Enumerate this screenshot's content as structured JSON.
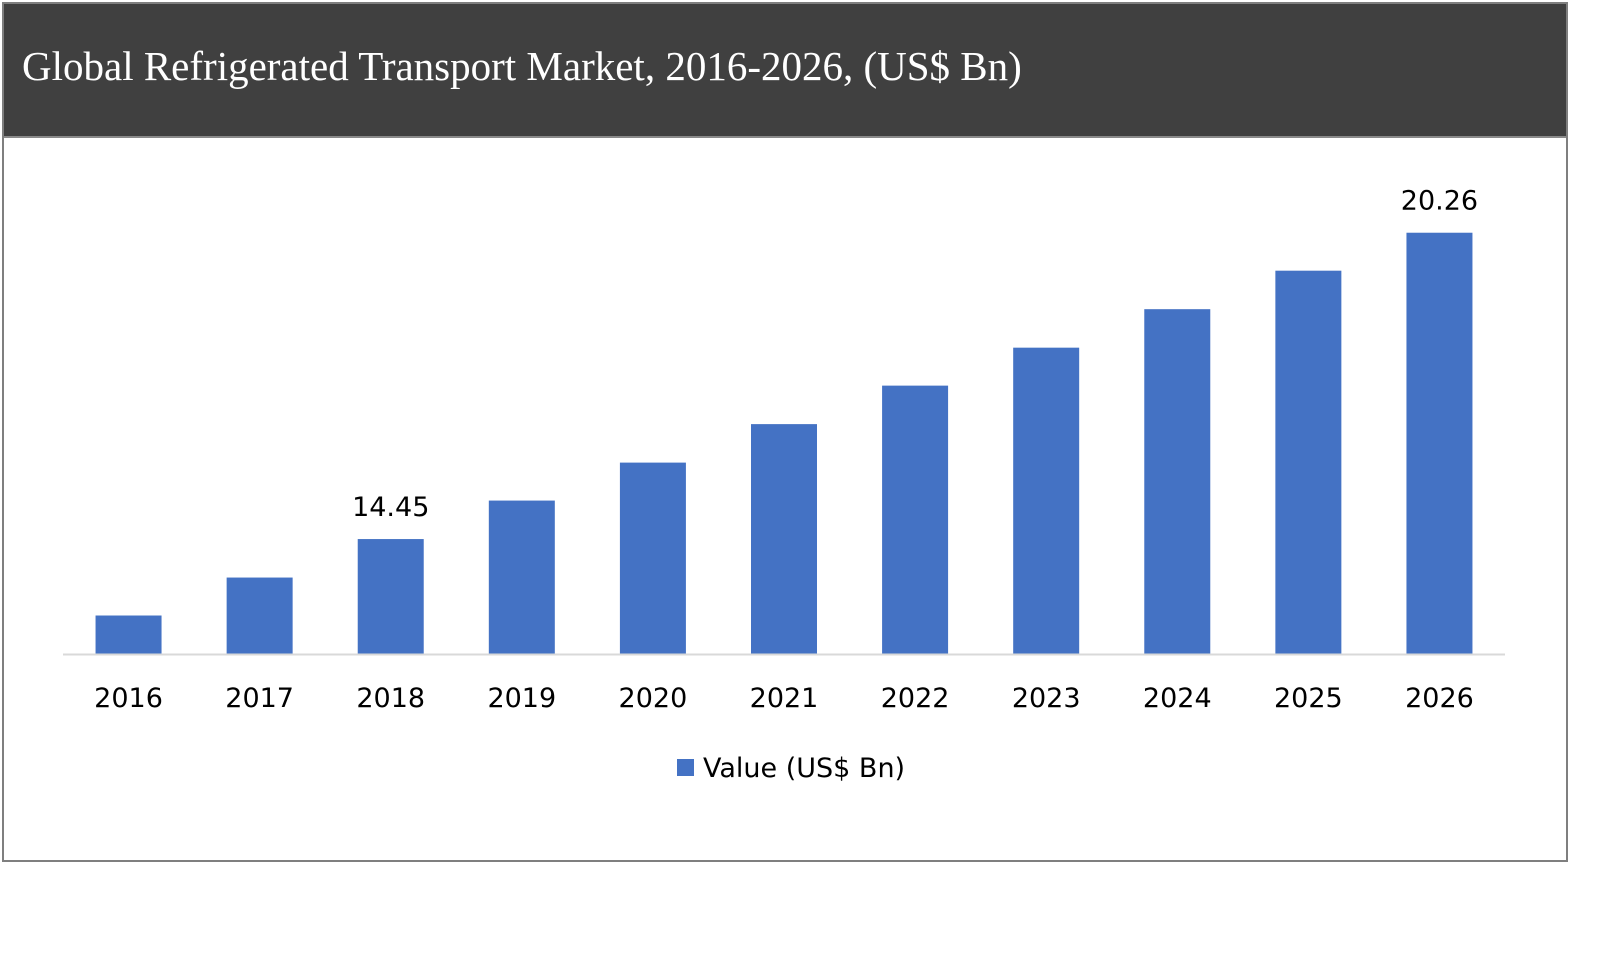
{
  "chart_data": {
    "type": "bar",
    "title": "Global Refrigerated Transport Market, 2016-2026, (US$ Bn)",
    "categories": [
      "2016",
      "2017",
      "2018",
      "2019",
      "2020",
      "2021",
      "2022",
      "2023",
      "2024",
      "2025",
      "2026"
    ],
    "series": [
      {
        "name": "Value (US$ Bn)",
        "values": [
          13.0,
          13.72,
          14.45,
          15.18,
          15.9,
          16.63,
          17.36,
          18.08,
          18.81,
          19.54,
          20.26
        ]
      }
    ],
    "data_labels": {
      "2018": "14.45",
      "2026": "20.26"
    },
    "xlabel": "",
    "ylabel": "",
    "ylim": [
      12.27,
      21.26
    ],
    "y_axis_visible": false,
    "grid": false,
    "legend_position": "bottom",
    "colors": {
      "bar": "#4472C4",
      "header": "#404040",
      "axis": "#D9D9D9"
    }
  }
}
